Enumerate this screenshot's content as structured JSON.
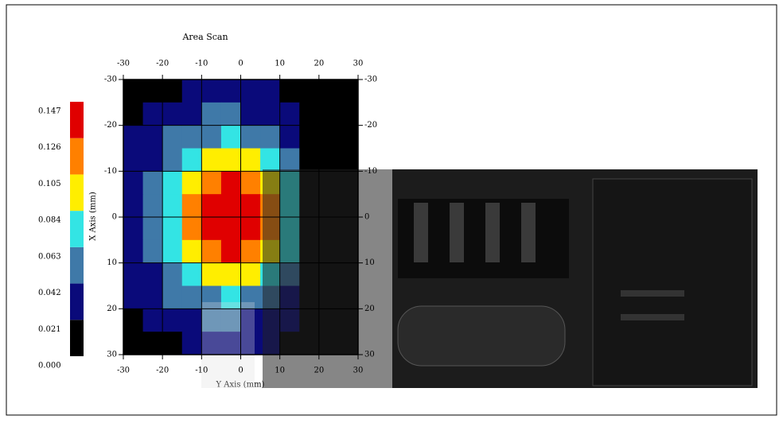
{
  "chart_data": {
    "type": "heatmap",
    "title": "Area Scan",
    "x_label": "Y Axis (mm)",
    "y_label": "X Axis (mm)",
    "xlim": [
      -30,
      30
    ],
    "ylim": [
      -30,
      30
    ],
    "y_direction": "down",
    "xticks": [
      -30,
      -20,
      -10,
      0,
      10,
      20,
      30
    ],
    "yticks": [
      -30,
      -20,
      -10,
      0,
      10,
      20,
      30
    ],
    "grid": true,
    "x": [
      -27.5,
      -22.5,
      -17.5,
      -12.5,
      -7.5,
      -2.5,
      2.5,
      7.5,
      12.5,
      17.5,
      22.5,
      27.5
    ],
    "y": [
      -27.5,
      -22.5,
      -17.5,
      -12.5,
      -7.5,
      -2.5,
      2.5,
      7.5,
      12.5,
      17.5,
      22.5,
      27.5
    ],
    "z": [
      [
        0.01,
        0.01,
        0.01,
        0.031,
        0.031,
        0.031,
        0.031,
        0.031,
        0.01,
        0.01,
        0.01,
        0.01
      ],
      [
        0.01,
        0.031,
        0.031,
        0.031,
        0.052,
        0.052,
        0.031,
        0.031,
        0.031,
        0.01,
        0.01,
        0.01
      ],
      [
        0.031,
        0.031,
        0.052,
        0.052,
        0.052,
        0.073,
        0.052,
        0.052,
        0.031,
        0.01,
        0.01,
        0.01
      ],
      [
        0.031,
        0.031,
        0.052,
        0.073,
        0.094,
        0.094,
        0.094,
        0.073,
        0.052,
        0.01,
        0.01,
        0.01
      ],
      [
        0.031,
        0.052,
        0.073,
        0.094,
        0.115,
        0.137,
        0.115,
        0.094,
        0.073,
        0.01,
        0.01,
        0.01
      ],
      [
        0.031,
        0.052,
        0.073,
        0.115,
        0.137,
        0.137,
        0.137,
        0.115,
        0.073,
        0.01,
        0.01,
        0.01
      ],
      [
        0.031,
        0.052,
        0.073,
        0.115,
        0.137,
        0.137,
        0.137,
        0.115,
        0.073,
        0.01,
        0.01,
        0.01
      ],
      [
        0.031,
        0.052,
        0.073,
        0.094,
        0.115,
        0.137,
        0.115,
        0.094,
        0.073,
        0.01,
        0.01,
        0.01
      ],
      [
        0.031,
        0.031,
        0.052,
        0.073,
        0.094,
        0.094,
        0.094,
        0.073,
        0.052,
        0.01,
        0.01,
        0.01
      ],
      [
        0.031,
        0.031,
        0.052,
        0.052,
        0.052,
        0.073,
        0.052,
        0.052,
        0.031,
        0.01,
        0.01,
        0.01
      ],
      [
        0.01,
        0.031,
        0.031,
        0.031,
        0.052,
        0.052,
        0.031,
        0.031,
        0.031,
        0.01,
        0.01,
        0.01
      ],
      [
        0.01,
        0.01,
        0.01,
        0.031,
        0.031,
        0.031,
        0.031,
        0.031,
        0.01,
        0.01,
        0.01,
        0.01
      ]
    ],
    "colorbar": {
      "levels": [
        {
          "value": 0,
          "label": "0.000"
        },
        0.021,
        0.042,
        0.063,
        0.084,
        0.105,
        0.126,
        0.147
      ],
      "colors": [
        "#000000",
        "#0a0a7a",
        "#3f79a8",
        "#33e4e4",
        "#ffee00",
        "#ff8000",
        "#e00000"
      ]
    }
  }
}
